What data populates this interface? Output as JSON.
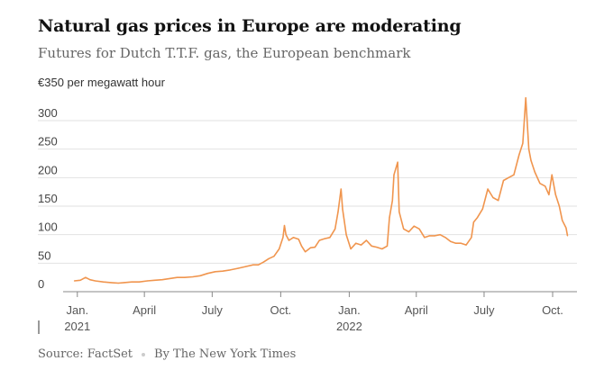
{
  "header": {
    "title": "Natural gas prices in Europe are moderating",
    "subtitle": "Futures for Dutch T.T.F. gas, the European benchmark",
    "unit_label": "€350 per megawatt hour"
  },
  "footer": {
    "source": "Source: FactSet",
    "credit": "By The New York Times"
  },
  "chart_data": {
    "type": "line",
    "title": "Natural gas prices in Europe are moderating",
    "subtitle": "Futures for Dutch T.T.F. gas, the European benchmark",
    "ylabel": "€350 per megawatt hour",
    "ylim": [
      0,
      350
    ],
    "yticks": [
      0,
      50,
      100,
      150,
      200,
      250,
      300
    ],
    "xlim": [
      "2020-12-25",
      "2022-10-24"
    ],
    "xticks": [
      {
        "date": "2021-01-01",
        "label": "Jan.",
        "sublabel": "2021"
      },
      {
        "date": "2021-04-01",
        "label": "April",
        "sublabel": ""
      },
      {
        "date": "2021-07-01",
        "label": "July",
        "sublabel": ""
      },
      {
        "date": "2021-10-01",
        "label": "Oct.",
        "sublabel": ""
      },
      {
        "date": "2022-01-01",
        "label": "Jan.",
        "sublabel": "2022"
      },
      {
        "date": "2022-04-01",
        "label": "April",
        "sublabel": ""
      },
      {
        "date": "2022-07-01",
        "label": "July",
        "sublabel": ""
      },
      {
        "date": "2022-10-01",
        "label": "Oct.",
        "sublabel": ""
      }
    ],
    "grid": true,
    "line_color": "#f0954e",
    "series": [
      {
        "points": [
          [
            "2020-12-28",
            19
          ],
          [
            "2021-01-05",
            20
          ],
          [
            "2021-01-12",
            25
          ],
          [
            "2021-01-18",
            21
          ],
          [
            "2021-01-25",
            19
          ],
          [
            "2021-02-05",
            17
          ],
          [
            "2021-02-15",
            16
          ],
          [
            "2021-02-25",
            15
          ],
          [
            "2021-03-05",
            16
          ],
          [
            "2021-03-15",
            17
          ],
          [
            "2021-03-25",
            17
          ],
          [
            "2021-04-05",
            19
          ],
          [
            "2021-04-15",
            20
          ],
          [
            "2021-04-25",
            21
          ],
          [
            "2021-05-05",
            23
          ],
          [
            "2021-05-15",
            25
          ],
          [
            "2021-05-25",
            25
          ],
          [
            "2021-06-05",
            26
          ],
          [
            "2021-06-15",
            28
          ],
          [
            "2021-06-25",
            32
          ],
          [
            "2021-07-05",
            35
          ],
          [
            "2021-07-15",
            36
          ],
          [
            "2021-07-25",
            38
          ],
          [
            "2021-08-05",
            41
          ],
          [
            "2021-08-15",
            44
          ],
          [
            "2021-08-25",
            47
          ],
          [
            "2021-09-01",
            47
          ],
          [
            "2021-09-08",
            52
          ],
          [
            "2021-09-15",
            58
          ],
          [
            "2021-09-22",
            62
          ],
          [
            "2021-09-29",
            75
          ],
          [
            "2021-10-04",
            95
          ],
          [
            "2021-10-06",
            116
          ],
          [
            "2021-10-08",
            100
          ],
          [
            "2021-10-12",
            90
          ],
          [
            "2021-10-18",
            95
          ],
          [
            "2021-10-25",
            92
          ],
          [
            "2021-10-29",
            80
          ],
          [
            "2021-11-03",
            70
          ],
          [
            "2021-11-10",
            77
          ],
          [
            "2021-11-16",
            78
          ],
          [
            "2021-11-22",
            90
          ],
          [
            "2021-11-29",
            93
          ],
          [
            "2021-12-06",
            95
          ],
          [
            "2021-12-13",
            110
          ],
          [
            "2021-12-17",
            140
          ],
          [
            "2021-12-21",
            180
          ],
          [
            "2021-12-23",
            145
          ],
          [
            "2021-12-28",
            100
          ],
          [
            "2022-01-03",
            75
          ],
          [
            "2022-01-10",
            85
          ],
          [
            "2022-01-17",
            82
          ],
          [
            "2022-01-24",
            90
          ],
          [
            "2022-01-31",
            80
          ],
          [
            "2022-02-07",
            78
          ],
          [
            "2022-02-14",
            75
          ],
          [
            "2022-02-21",
            80
          ],
          [
            "2022-02-24",
            130
          ],
          [
            "2022-02-28",
            160
          ],
          [
            "2022-03-02",
            205
          ],
          [
            "2022-03-07",
            227
          ],
          [
            "2022-03-09",
            140
          ],
          [
            "2022-03-15",
            110
          ],
          [
            "2022-03-22",
            105
          ],
          [
            "2022-03-29",
            115
          ],
          [
            "2022-04-05",
            110
          ],
          [
            "2022-04-12",
            95
          ],
          [
            "2022-04-19",
            98
          ],
          [
            "2022-04-26",
            98
          ],
          [
            "2022-05-03",
            100
          ],
          [
            "2022-05-10",
            95
          ],
          [
            "2022-05-17",
            88
          ],
          [
            "2022-05-24",
            85
          ],
          [
            "2022-05-31",
            85
          ],
          [
            "2022-06-07",
            82
          ],
          [
            "2022-06-14",
            95
          ],
          [
            "2022-06-17",
            122
          ],
          [
            "2022-06-22",
            130
          ],
          [
            "2022-06-29",
            145
          ],
          [
            "2022-07-06",
            180
          ],
          [
            "2022-07-13",
            165
          ],
          [
            "2022-07-20",
            160
          ],
          [
            "2022-07-27",
            195
          ],
          [
            "2022-08-03",
            200
          ],
          [
            "2022-08-10",
            205
          ],
          [
            "2022-08-17",
            240
          ],
          [
            "2022-08-22",
            260
          ],
          [
            "2022-08-26",
            340
          ],
          [
            "2022-08-30",
            250
          ],
          [
            "2022-09-02",
            230
          ],
          [
            "2022-09-07",
            210
          ],
          [
            "2022-09-14",
            190
          ],
          [
            "2022-09-21",
            185
          ],
          [
            "2022-09-26",
            170
          ],
          [
            "2022-09-30",
            205
          ],
          [
            "2022-10-05",
            170
          ],
          [
            "2022-10-10",
            150
          ],
          [
            "2022-10-14",
            125
          ],
          [
            "2022-10-19",
            112
          ],
          [
            "2022-10-21",
            98
          ]
        ]
      }
    ]
  }
}
